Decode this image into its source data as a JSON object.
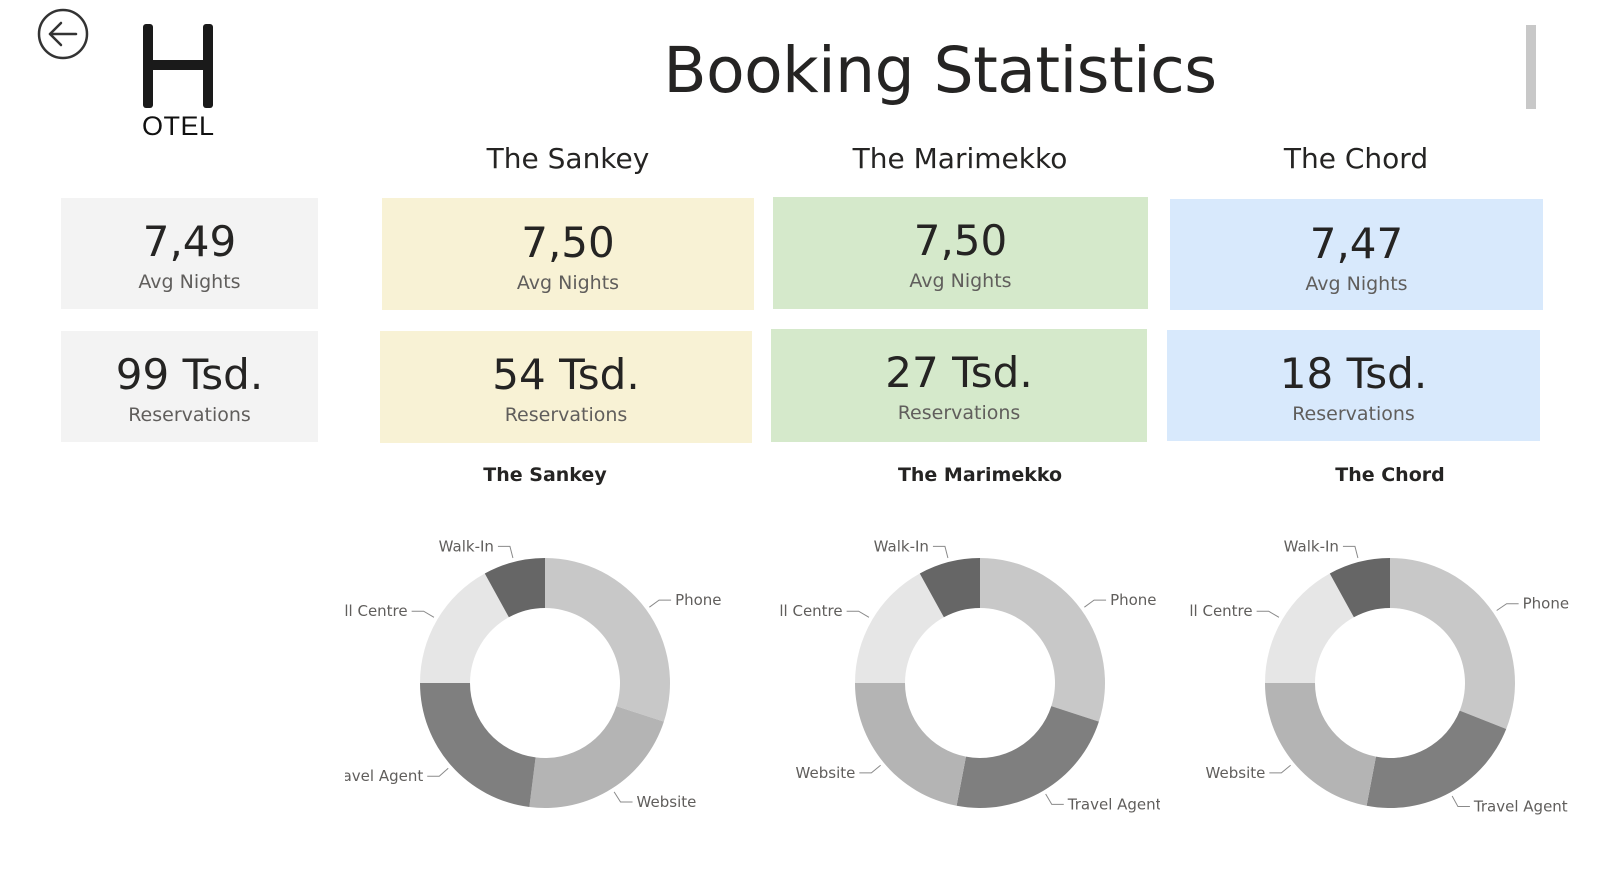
{
  "header": {
    "title": "Booking Statistics",
    "logo_text": "OTEL"
  },
  "icons": {
    "back": "back-arrow-icon",
    "logo": "hotel-logo-h-icon"
  },
  "colors": {
    "total_card": "#f3f3f3",
    "sankey_card": "#f8f2d5",
    "marimekko_card": "#d5e9cb",
    "chord_card": "#d8e9fc"
  },
  "totals": {
    "avg_nights": {
      "value": "7,49",
      "label": "Avg Nights"
    },
    "reservations": {
      "value": "99 Tsd.",
      "label": "Reservations"
    }
  },
  "hotels": [
    {
      "name": "The Sankey",
      "avg_nights": {
        "value": "7,50",
        "label": "Avg Nights"
      },
      "reservations": {
        "value": "54 Tsd.",
        "label": "Reservations"
      }
    },
    {
      "name": "The Marimekko",
      "avg_nights": {
        "value": "7,50",
        "label": "Avg Nights"
      },
      "reservations": {
        "value": "27 Tsd.",
        "label": "Reservations"
      }
    },
    {
      "name": "The Chord",
      "avg_nights": {
        "value": "7,47",
        "label": "Avg Nights"
      },
      "reservations": {
        "value": "18 Tsd.",
        "label": "Reservations"
      }
    }
  ],
  "chart_data": [
    {
      "type": "pie",
      "donut": true,
      "title": "The Sankey",
      "categories": [
        "Phone App",
        "Website",
        "Travel Agent",
        "Call Centre",
        "Walk-In"
      ],
      "values": [
        30,
        22,
        23,
        17,
        8
      ],
      "colors": [
        "#c8c8c8",
        "#b4b4b4",
        "#7f7f7f",
        "#e6e6e6",
        "#666666"
      ]
    },
    {
      "type": "pie",
      "donut": true,
      "title": "The Marimekko",
      "categories": [
        "Phone App",
        "Travel Agent",
        "Website",
        "Call Centre",
        "Walk-In"
      ],
      "values": [
        30,
        23,
        22,
        17,
        8
      ],
      "colors": [
        "#c8c8c8",
        "#7f7f7f",
        "#b4b4b4",
        "#e6e6e6",
        "#666666"
      ]
    },
    {
      "type": "pie",
      "donut": true,
      "title": "The Chord",
      "categories": [
        "Phone App",
        "Travel Agent",
        "Website",
        "Call Centre",
        "Walk-In"
      ],
      "values": [
        31,
        22,
        22,
        17,
        8
      ],
      "colors": [
        "#c8c8c8",
        "#7f7f7f",
        "#b4b4b4",
        "#e6e6e6",
        "#666666"
      ]
    }
  ]
}
